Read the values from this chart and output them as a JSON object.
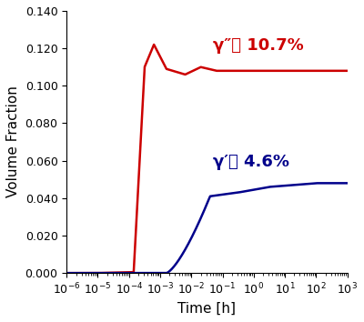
{
  "xlabel": "Time [h]",
  "ylabel": "Volume Fraction",
  "xlim_log": [
    -6,
    3
  ],
  "ylim": [
    0.0,
    0.14
  ],
  "yticks": [
    0.0,
    0.02,
    0.04,
    0.06,
    0.08,
    0.1,
    0.12,
    0.14
  ],
  "red_label": "γ″相 10.7%",
  "blue_label": "γ′相 4.6%",
  "red_color": "#cc0000",
  "blue_color": "#00008B",
  "background_color": "#ffffff",
  "label_fontsize": 11,
  "tick_fontsize": 9,
  "annotation_fontsize": 13
}
